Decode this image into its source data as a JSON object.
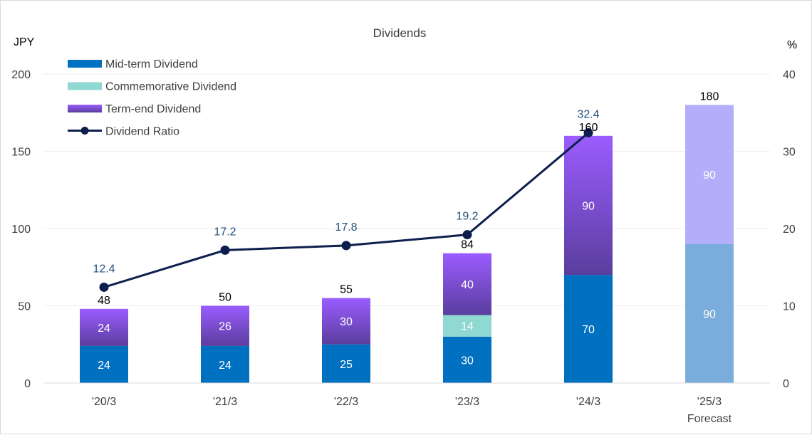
{
  "chart_data": {
    "type": "bar",
    "title": "Dividends",
    "ylabel_left": "JPY",
    "ylabel_right": "%",
    "ylim_left": [
      0,
      200
    ],
    "ylim_right": [
      0,
      40
    ],
    "yticks_left": [
      "0",
      "50",
      "100",
      "150",
      "200"
    ],
    "yticks_right": [
      "0",
      "10",
      "20",
      "30",
      "40"
    ],
    "grid": true,
    "legend_position": "top-left",
    "categories": [
      "'20/3",
      "'21/3",
      "'22/3",
      "'23/3",
      "'24/3",
      "'25/3"
    ],
    "category_sublabels": [
      "",
      "",
      "",
      "",
      "",
      "Forecast"
    ],
    "forecast_index": 5,
    "series": [
      {
        "name": "Mid-term Dividend",
        "kind": "stacked-bar",
        "color": "#0070C0",
        "forecast_color": "#7AADDB",
        "values": [
          24,
          24,
          25,
          30,
          70,
          90
        ],
        "value_labels": [
          "24",
          "24",
          "25",
          "30",
          "70",
          "90"
        ]
      },
      {
        "name": "Commemorative Dividend",
        "kind": "stacked-bar",
        "color": "#8FD9D2",
        "values": [
          0,
          0,
          0,
          14,
          0,
          0
        ],
        "value_labels": [
          "",
          "",
          "",
          "14",
          "",
          ""
        ]
      },
      {
        "name": "Term-end Dividend",
        "kind": "stacked-bar",
        "color_top": "#9B5CFF",
        "color_bottom": "#5A3E9E",
        "forecast_color": "#B3AEFA",
        "values": [
          24,
          26,
          30,
          40,
          90,
          90
        ],
        "value_labels": [
          "24",
          "26",
          "30",
          "40",
          "90",
          "90"
        ]
      },
      {
        "name": "Dividend Ratio",
        "kind": "line",
        "axis": "right",
        "color": "#0E1F4D",
        "values": [
          12.4,
          17.2,
          17.8,
          19.2,
          32.4,
          null
        ],
        "value_labels": [
          "12.4",
          "17.2",
          "17.8",
          "19.2",
          "32.4",
          ""
        ]
      }
    ],
    "totals": [
      48,
      50,
      55,
      84,
      160,
      180
    ],
    "total_labels": [
      "48",
      "50",
      "55",
      "84",
      "160",
      "180"
    ]
  }
}
